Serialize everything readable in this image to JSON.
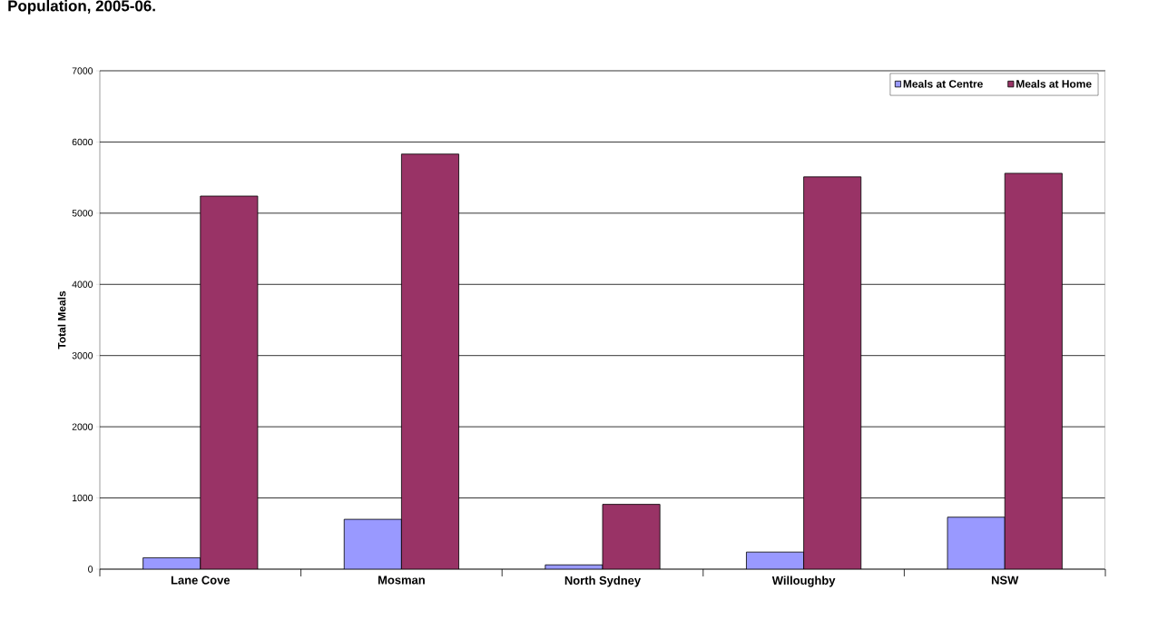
{
  "chart_data": {
    "type": "bar",
    "title": "Population, 2005-06.",
    "ylabel": "Total Meals",
    "categories": [
      "Lane Cove",
      "Mosman",
      "North Sydney",
      "Willoughby",
      "NSW"
    ],
    "series": [
      {
        "name": "Meals at Centre",
        "color": "#9999ff",
        "values": [
          160,
          700,
          60,
          240,
          730
        ]
      },
      {
        "name": "Meals at Home",
        "color": "#993366",
        "values": [
          5240,
          5830,
          910,
          5510,
          5560
        ]
      }
    ],
    "ylim": [
      0,
      7000
    ],
    "yticks": [
      0,
      1000,
      2000,
      3000,
      4000,
      5000,
      6000,
      7000
    ],
    "grid": "y",
    "legend": "top right"
  }
}
